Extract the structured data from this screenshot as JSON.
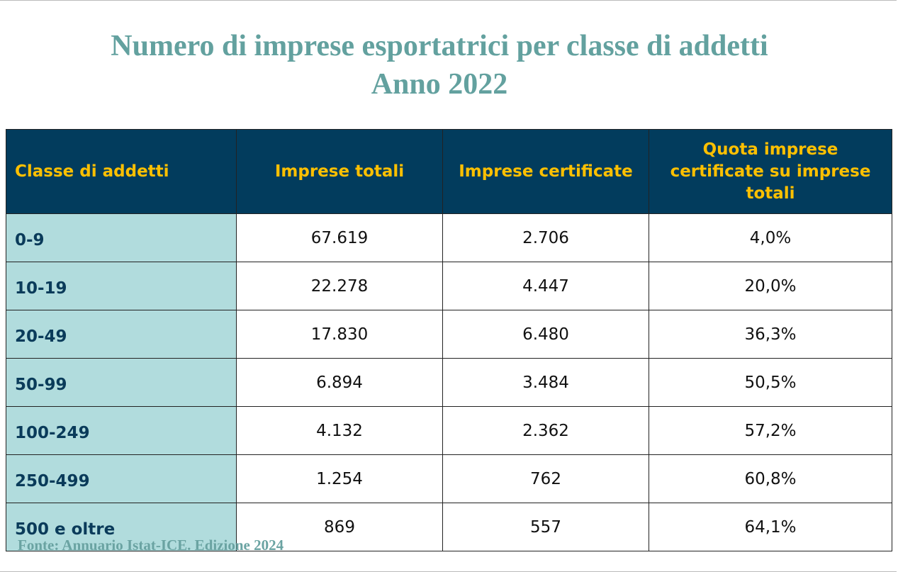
{
  "header": {
    "title_lines": [
      "Numero di imprese esportatrici per classe di addetti",
      "Anno 2022"
    ]
  },
  "table": {
    "columns": [
      "Classe di addetti",
      "Imprese totali",
      "Imprese certificate",
      "Quota imprese certificate su imprese totali"
    ],
    "rows": [
      [
        "0-9",
        "67.619",
        "2.706",
        "4,0%"
      ],
      [
        "10-19",
        "22.278",
        "4.447",
        "20,0%"
      ],
      [
        "20-49",
        "17.830",
        "6.480",
        "36,3%"
      ],
      [
        "50-99",
        "6.894",
        "3.484",
        "50,5%"
      ],
      [
        "100-249",
        "4.132",
        "2.362",
        "57,2%"
      ],
      [
        "250-499",
        "1.254",
        "762",
        "60,8%"
      ],
      [
        "500 e oltre",
        "869",
        "557",
        "64,1%"
      ]
    ]
  },
  "footer": {
    "source": "Fonte: Annuario Istat-ICE. Edizione 2024"
  }
}
